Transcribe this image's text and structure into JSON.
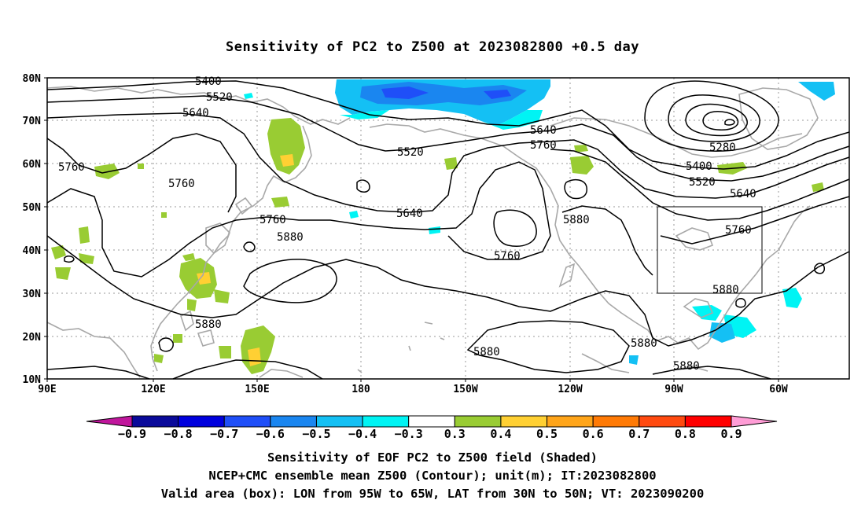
{
  "title": "Sensitivity of PC2 to Z500 at 2023082800 +0.5 day",
  "lat_ticks": [
    "80N",
    "70N",
    "60N",
    "50N",
    "40N",
    "30N",
    "20N",
    "10N"
  ],
  "lon_ticks": [
    "90E",
    "120E",
    "150E",
    "180",
    "150W",
    "120W",
    "90W",
    "60W"
  ],
  "contours": [
    {
      "value": "5400",
      "label": "5400"
    },
    {
      "value": "5520",
      "label": "5520"
    },
    {
      "value": "5640",
      "label": "5640"
    },
    {
      "value": "5760",
      "label": "5760"
    },
    {
      "value": "5880",
      "label": "5880"
    },
    {
      "value": "5280",
      "label": "5280"
    }
  ],
  "colorbar": {
    "labels": [
      "−0.9",
      "−0.8",
      "−0.7",
      "−0.6",
      "−0.5",
      "−0.4",
      "−0.3",
      "0.3",
      "0.4",
      "0.5",
      "0.6",
      "0.7",
      "0.8",
      "0.9"
    ],
    "colors": [
      "#0a0a9a",
      "#0000dd",
      "#1f4ff8",
      "#1a86f0",
      "#14c0f4",
      "#00f4f4",
      "#ffffff",
      "#99cc33",
      "#ffd033",
      "#ffa51a",
      "#ff7a05",
      "#ff4a10",
      "#ff0000"
    ],
    "low_arrow_color": "#c0169c",
    "high_arrow_color": "#ff9dd6"
  },
  "valid_box": {
    "lon_from": "95W",
    "lon_to": "65W",
    "lat_from": "30N",
    "lat_to": "50N"
  },
  "caption": {
    "line1": "Sensitivity of EOF PC2 to Z500 field (Shaded)",
    "line2": "NCEP+CMC ensemble mean Z500 (Contour); unit(m); IT:2023082800",
    "line3": "Valid area (box): LON from 95W to 65W, LAT from 30N to 50N; VT: 2023090200"
  }
}
